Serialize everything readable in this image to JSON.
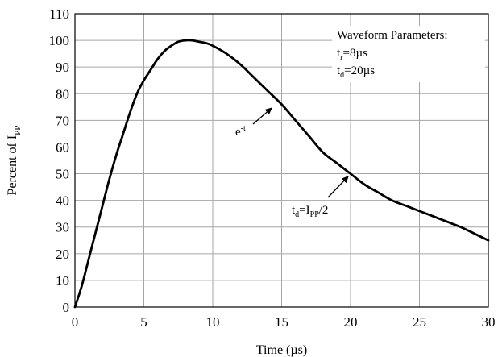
{
  "chart_data": {
    "type": "line",
    "xlabel": "Time (µs)",
    "ylabel": {
      "main": "Percent of I",
      "sub": "PP"
    },
    "xlim": [
      0,
      30
    ],
    "ylim": [
      0,
      110
    ],
    "x_ticks": [
      0,
      5,
      10,
      15,
      20,
      25,
      30
    ],
    "y_ticks": [
      0,
      10,
      20,
      30,
      40,
      50,
      60,
      70,
      80,
      90,
      100,
      110
    ],
    "grid": true,
    "series": [
      {
        "x": [
          0,
          0.5,
          1,
          1.5,
          2,
          2.5,
          3,
          3.5,
          4,
          4.5,
          5,
          5.5,
          6,
          6.5,
          7,
          7.5,
          8,
          8.5,
          9,
          9.5,
          10,
          11,
          12,
          13,
          14,
          15,
          16,
          17,
          18,
          19,
          20,
          21,
          22,
          23,
          24,
          25,
          26,
          27,
          28,
          29,
          30
        ],
        "y": [
          0,
          8,
          18,
          28,
          38,
          48,
          57,
          65,
          73,
          80,
          85,
          89,
          93,
          96,
          98,
          99.5,
          100,
          100,
          99.5,
          99,
          98,
          95,
          91,
          86,
          81,
          76,
          70,
          64,
          58,
          54,
          50,
          46,
          43,
          40,
          38,
          36,
          34,
          32,
          30,
          27.5,
          25
        ]
      }
    ],
    "legend_box": {
      "title": "Waveform Parameters:",
      "lines": [
        {
          "main": "t",
          "sub": "r",
          "rest": "=8µs"
        },
        {
          "main": "t",
          "sub": "d",
          "rest": "=20µs"
        }
      ]
    },
    "annotations": [
      {
        "main": "e",
        "sup": "-t",
        "at": [
          14.8,
          77
        ]
      },
      {
        "a": "t",
        "a_sub": "d",
        "b": "=I",
        "b_sub": "PP",
        "c": "/2",
        "at": [
          20,
          50.5
        ]
      }
    ]
  }
}
